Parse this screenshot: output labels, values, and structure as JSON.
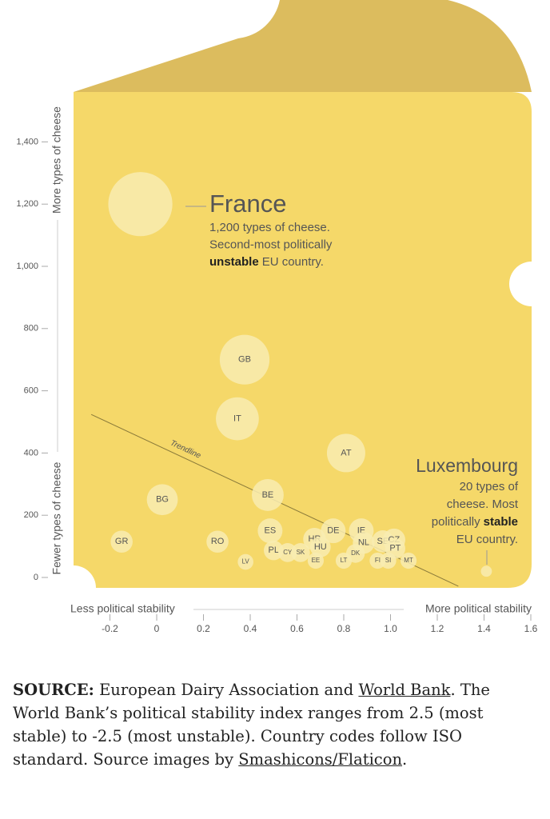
{
  "chart_data": {
    "type": "bubble",
    "y_label_top": "More types of cheese",
    "y_label_bottom": "Fewer types of cheese",
    "x_label_left": "Less political stability",
    "x_label_right": "More political stability",
    "labels": [
      null,
      "GB",
      "IT",
      "AT",
      "BE",
      "BG",
      "GR",
      "RO",
      "ES",
      "LV",
      "PL",
      "CY",
      "SK",
      "HR",
      "HU",
      "EE",
      "DE",
      "IE",
      "NL",
      "DK",
      "LT",
      "SE",
      "CZ",
      "PT",
      "FI",
      "SI",
      "MT",
      null
    ],
    "x": [
      -0.07,
      0.376,
      0.345,
      0.81,
      0.475,
      0.024,
      -0.15,
      0.26,
      0.485,
      0.38,
      0.5,
      0.56,
      0.615,
      0.675,
      0.7,
      0.68,
      0.755,
      0.875,
      0.885,
      0.85,
      0.8,
      0.967,
      1.015,
      1.02,
      0.945,
      0.99,
      1.077,
      1.41
    ],
    "values": [
      1200,
      700,
      510,
      400,
      265,
      250,
      115,
      115,
      150,
      50,
      87,
      80,
      80,
      123,
      98,
      54,
      150,
      150,
      111,
      77,
      54,
      116,
      121,
      93,
      54,
      54,
      54,
      20
    ],
    "color": "#f8ecb2",
    "trendline": {
      "label": "Trendline",
      "x": [
        -0.28,
        1.29
      ],
      "y": [
        524,
        -28
      ]
    },
    "annotations": [
      {
        "title": "France",
        "lines": [
          [
            "1,200 types of cheese."
          ],
          [
            "Second-most politically"
          ],
          [
            "unstable",
            "EU country."
          ]
        ],
        "bold": "unstable"
      },
      {
        "title": "Luxembourg",
        "lines": [
          [
            "20 types of"
          ],
          [
            "cheese. Most"
          ],
          [
            "politically",
            "stable"
          ],
          [
            "EU country."
          ]
        ],
        "bold": "stable"
      }
    ],
    "xlim": [
      -0.25,
      1.6
    ],
    "ylim": [
      0,
      1400
    ],
    "xticks": [
      -0.2,
      0,
      0.2,
      0.4,
      0.6,
      0.8,
      {
        "value": 1,
        "label": "1.0"
      },
      1.2,
      1.4,
      1.6
    ],
    "yticks": [
      0,
      200,
      400,
      600,
      800,
      {
        "value": 1000,
        "label": "1,000"
      },
      {
        "value": 1200,
        "label": "1,200"
      },
      {
        "value": 1400,
        "label": "1,400"
      }
    ]
  },
  "source": {
    "label": "SOURCE:",
    "parts": [
      " European Dairy Association and ",
      "World Bank",
      ". The World Bank’s political stability index ranges from 2.5 (most stable) to -2.5 (most unstable). Country codes follow ISO standard. Source images by ",
      "Smashicons/Flaticon",
      "."
    ]
  }
}
